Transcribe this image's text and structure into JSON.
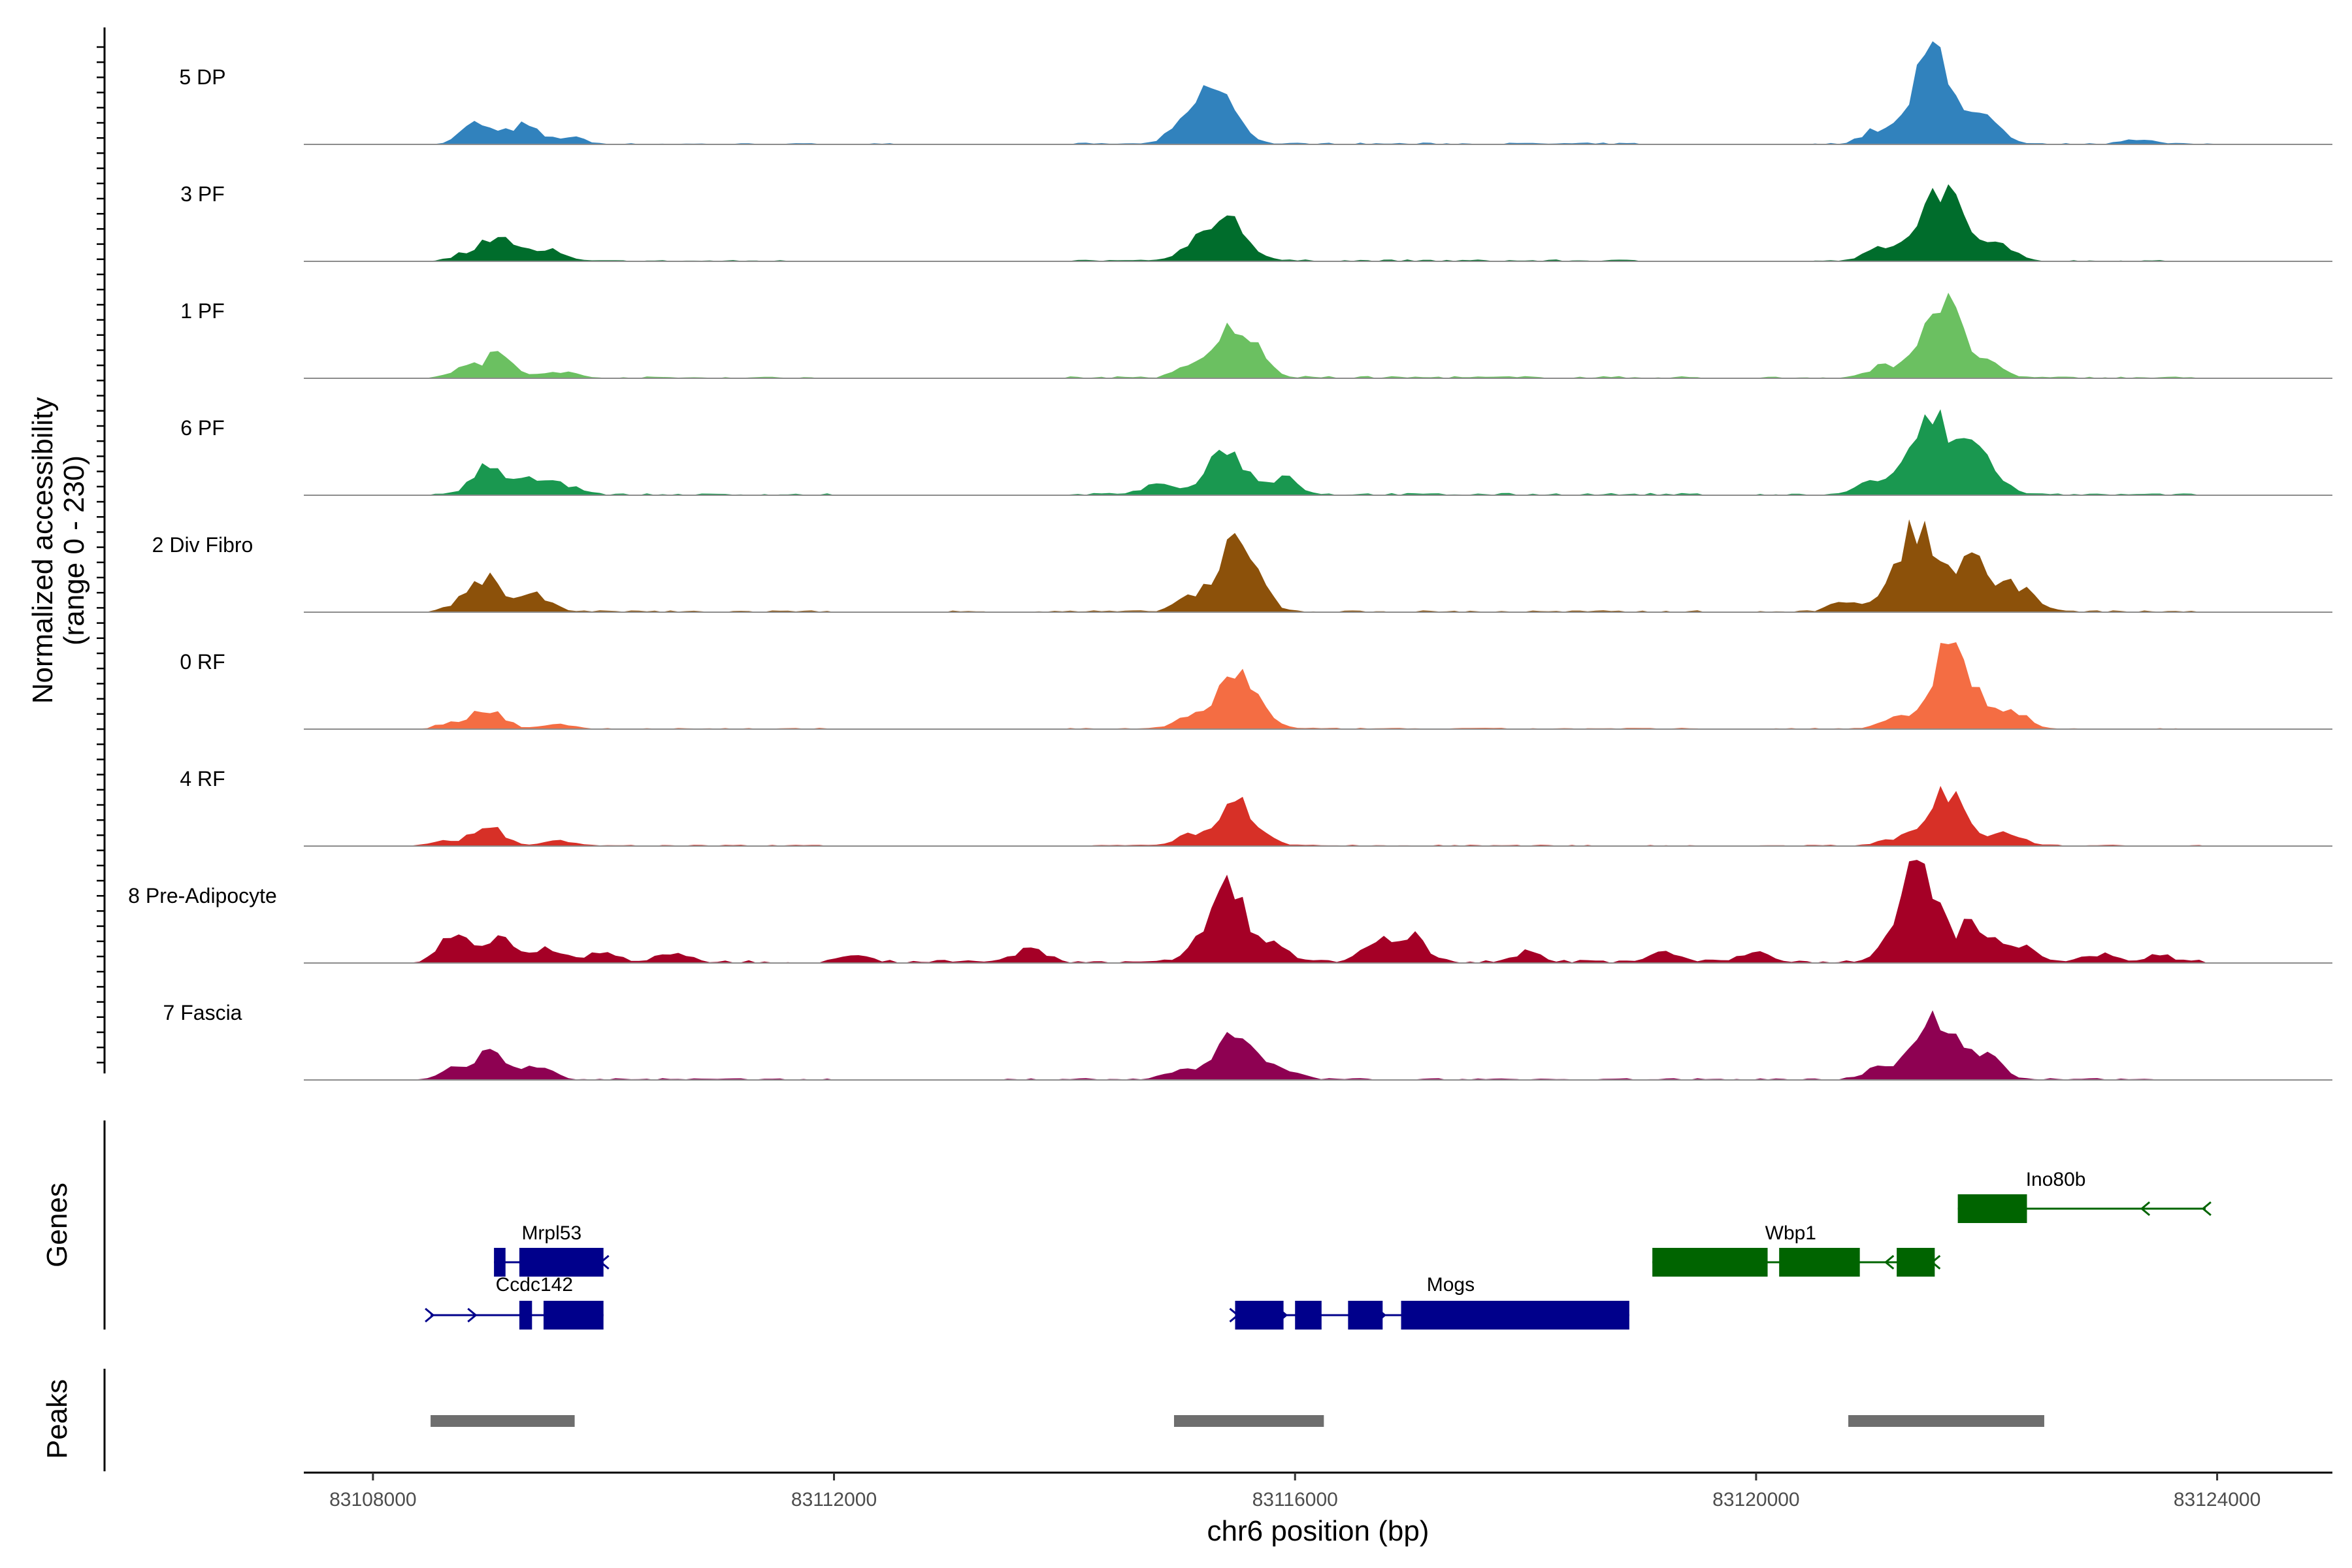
{
  "chart_data": {
    "type": "area",
    "title": "",
    "ylabel": "Normalized accessibility",
    "ylabel_range": "(range 0 - 230)",
    "xlabel": "chr6 position (bp)",
    "xlim": [
      83107400,
      83125000
    ],
    "ylim": [
      0,
      230
    ],
    "x_ticks": [
      {
        "value": 83108000,
        "label": "83108000"
      },
      {
        "value": 83112000,
        "label": "83112000"
      },
      {
        "value": 83116000,
        "label": "83116000"
      },
      {
        "value": 83120000,
        "label": "83120000"
      },
      {
        "value": 83124000,
        "label": "83124000"
      }
    ],
    "series": [
      {
        "name": "5 DP",
        "color": "#3182bd",
        "peaks": [
          {
            "x": 83108900,
            "y": 45
          },
          {
            "x": 83109300,
            "y": 40
          },
          {
            "x": 83109700,
            "y": 15
          },
          {
            "x": 83115300,
            "y": 125
          },
          {
            "x": 83115000,
            "y": 20
          },
          {
            "x": 83121550,
            "y": 215
          },
          {
            "x": 83121050,
            "y": 30
          },
          {
            "x": 83122000,
            "y": 50
          },
          {
            "x": 83123300,
            "y": 12
          }
        ],
        "noise": [
          [
            83108700,
            83112500,
            3
          ],
          [
            83114000,
            83119000,
            4
          ],
          [
            83120500,
            83124000,
            3
          ]
        ]
      },
      {
        "name": "3 PF",
        "color": "#006d2c",
        "peaks": [
          {
            "x": 83109100,
            "y": 60
          },
          {
            "x": 83109500,
            "y": 25
          },
          {
            "x": 83108800,
            "y": 15
          },
          {
            "x": 83115400,
            "y": 95
          },
          {
            "x": 83115100,
            "y": 20
          },
          {
            "x": 83121600,
            "y": 170
          },
          {
            "x": 83121100,
            "y": 30
          },
          {
            "x": 83122100,
            "y": 45
          }
        ],
        "noise": [
          [
            83108600,
            83112000,
            3
          ],
          [
            83114000,
            83119000,
            4
          ],
          [
            83120500,
            83123800,
            3
          ]
        ]
      },
      {
        "name": "1 PF",
        "color": "#6bc061",
        "peaks": [
          {
            "x": 83109100,
            "y": 50
          },
          {
            "x": 83108800,
            "y": 20
          },
          {
            "x": 83109600,
            "y": 15
          },
          {
            "x": 83115500,
            "y": 115
          },
          {
            "x": 83115100,
            "y": 20
          },
          {
            "x": 83121600,
            "y": 170
          },
          {
            "x": 83121100,
            "y": 25
          },
          {
            "x": 83122000,
            "y": 30
          }
        ],
        "noise": [
          [
            83108500,
            83112000,
            4
          ],
          [
            83114000,
            83119500,
            5
          ],
          [
            83120000,
            83123900,
            4
          ]
        ]
      },
      {
        "name": "6 PF",
        "color": "#1a9850",
        "peaks": [
          {
            "x": 83109000,
            "y": 65
          },
          {
            "x": 83109400,
            "y": 35
          },
          {
            "x": 83109700,
            "y": 20
          },
          {
            "x": 83115400,
            "y": 100
          },
          {
            "x": 83114800,
            "y": 25
          },
          {
            "x": 83115900,
            "y": 35
          },
          {
            "x": 83121500,
            "y": 160
          },
          {
            "x": 83121900,
            "y": 100
          },
          {
            "x": 83121000,
            "y": 30
          }
        ],
        "noise": [
          [
            83108500,
            83112000,
            4
          ],
          [
            83114000,
            83119500,
            5
          ],
          [
            83120000,
            83123900,
            4
          ]
        ]
      },
      {
        "name": "2 Div Fibro",
        "color": "#8c510a",
        "peaks": [
          {
            "x": 83109000,
            "y": 70
          },
          {
            "x": 83109400,
            "y": 35
          },
          {
            "x": 83108800,
            "y": 20
          },
          {
            "x": 83115500,
            "y": 150
          },
          {
            "x": 83115100,
            "y": 30
          },
          {
            "x": 83121400,
            "y": 195
          },
          {
            "x": 83121900,
            "y": 110
          },
          {
            "x": 83122300,
            "y": 50
          },
          {
            "x": 83120800,
            "y": 25
          }
        ],
        "noise": [
          [
            83108500,
            83112000,
            4
          ],
          [
            83113000,
            83119500,
            4
          ],
          [
            83120000,
            83123900,
            4
          ]
        ]
      },
      {
        "name": "0 RF",
        "color": "#f46d43",
        "peaks": [
          {
            "x": 83109000,
            "y": 45
          },
          {
            "x": 83108700,
            "y": 12
          },
          {
            "x": 83109600,
            "y": 10
          },
          {
            "x": 83115500,
            "y": 120
          },
          {
            "x": 83115100,
            "y": 25
          },
          {
            "x": 83121700,
            "y": 190
          },
          {
            "x": 83121200,
            "y": 25
          },
          {
            "x": 83122200,
            "y": 45
          }
        ],
        "noise": [
          [
            83108500,
            83112000,
            3
          ],
          [
            83114000,
            83119500,
            3
          ],
          [
            83120000,
            83123900,
            3
          ]
        ]
      },
      {
        "name": "4 RF",
        "color": "#d73027",
        "peaks": [
          {
            "x": 83109000,
            "y": 45
          },
          {
            "x": 83108600,
            "y": 10
          },
          {
            "x": 83109600,
            "y": 10
          },
          {
            "x": 83115500,
            "y": 95
          },
          {
            "x": 83115100,
            "y": 20
          },
          {
            "x": 83121650,
            "y": 120
          },
          {
            "x": 83122200,
            "y": 25
          },
          {
            "x": 83121200,
            "y": 15
          }
        ],
        "noise": [
          [
            83108500,
            83112000,
            3
          ],
          [
            83114000,
            83119500,
            3
          ],
          [
            83120000,
            83123900,
            3
          ]
        ]
      },
      {
        "name": "8 Pre-Adipocyte",
        "color": "#a50026",
        "peaks": [
          {
            "x": 83108700,
            "y": 55
          },
          {
            "x": 83109100,
            "y": 50
          },
          {
            "x": 83109500,
            "y": 30
          },
          {
            "x": 83110000,
            "y": 20
          },
          {
            "x": 83110600,
            "y": 18
          },
          {
            "x": 83112200,
            "y": 15
          },
          {
            "x": 83113700,
            "y": 30
          },
          {
            "x": 83115400,
            "y": 165
          },
          {
            "x": 83115800,
            "y": 40
          },
          {
            "x": 83116700,
            "y": 40
          },
          {
            "x": 83117000,
            "y": 60
          },
          {
            "x": 83118000,
            "y": 20
          },
          {
            "x": 83119200,
            "y": 20
          },
          {
            "x": 83120000,
            "y": 22
          },
          {
            "x": 83121400,
            "y": 210
          },
          {
            "x": 83121900,
            "y": 90
          },
          {
            "x": 83122300,
            "y": 35
          },
          {
            "x": 83123000,
            "y": 18
          },
          {
            "x": 83123500,
            "y": 12
          }
        ],
        "noise": [
          [
            83108500,
            83123900,
            7
          ]
        ]
      },
      {
        "name": "7 Fascia",
        "color": "#8e0152",
        "peaks": [
          {
            "x": 83109000,
            "y": 60
          },
          {
            "x": 83109400,
            "y": 30
          },
          {
            "x": 83108700,
            "y": 20
          },
          {
            "x": 83115500,
            "y": 115
          },
          {
            "x": 83115000,
            "y": 20
          },
          {
            "x": 83115900,
            "y": 18
          },
          {
            "x": 83121550,
            "y": 150
          },
          {
            "x": 83121100,
            "y": 30
          },
          {
            "x": 83122000,
            "y": 50
          }
        ],
        "noise": [
          [
            83108500,
            83112000,
            4
          ],
          [
            83113500,
            83120000,
            4
          ],
          [
            83120000,
            83123900,
            4
          ]
        ]
      }
    ],
    "genes_track": {
      "label": "Genes",
      "genes": [
        {
          "name": "Mrpl53",
          "color": "#00008b",
          "strand": "-",
          "row": 1,
          "start": 83109050,
          "end": 83110000,
          "exons": [
            [
              83109050,
              83109150
            ],
            [
              83109270,
              83110000
            ]
          ]
        },
        {
          "name": "Ccdc142",
          "color": "#00008b",
          "strand": "+",
          "row": 2,
          "start": 83108500,
          "end": 83110000,
          "exons": [
            [
              83109270,
              83109380
            ],
            [
              83109480,
              83110000
            ]
          ]
        },
        {
          "name": "Mogs",
          "color": "#00008b",
          "strand": "+",
          "row": 2,
          "start": 83115480,
          "end": 83118900,
          "exons": [
            [
              83115480,
              83115900
            ],
            [
              83116000,
              83116230
            ],
            [
              83116460,
              83116760
            ],
            [
              83116920,
              83118900
            ]
          ]
        },
        {
          "name": "Wbp1",
          "color": "#006400",
          "strand": "-",
          "row": 1,
          "start": 83119100,
          "end": 83121550,
          "exons": [
            [
              83119100,
              83120100
            ],
            [
              83120200,
              83120900
            ],
            [
              83121220,
              83121550
            ]
          ]
        },
        {
          "name": "Ino80b",
          "color": "#006400",
          "strand": "-",
          "row": 0,
          "start": 83121750,
          "end": 83123900,
          "exons": [
            [
              83121750,
              83122350
            ]
          ]
        }
      ]
    },
    "peaks_track": {
      "label": "Peaks",
      "color": "#6e6e6e",
      "regions": [
        [
          83108500,
          83109750
        ],
        [
          83114950,
          83116250
        ],
        [
          83120800,
          83122500
        ]
      ]
    }
  }
}
